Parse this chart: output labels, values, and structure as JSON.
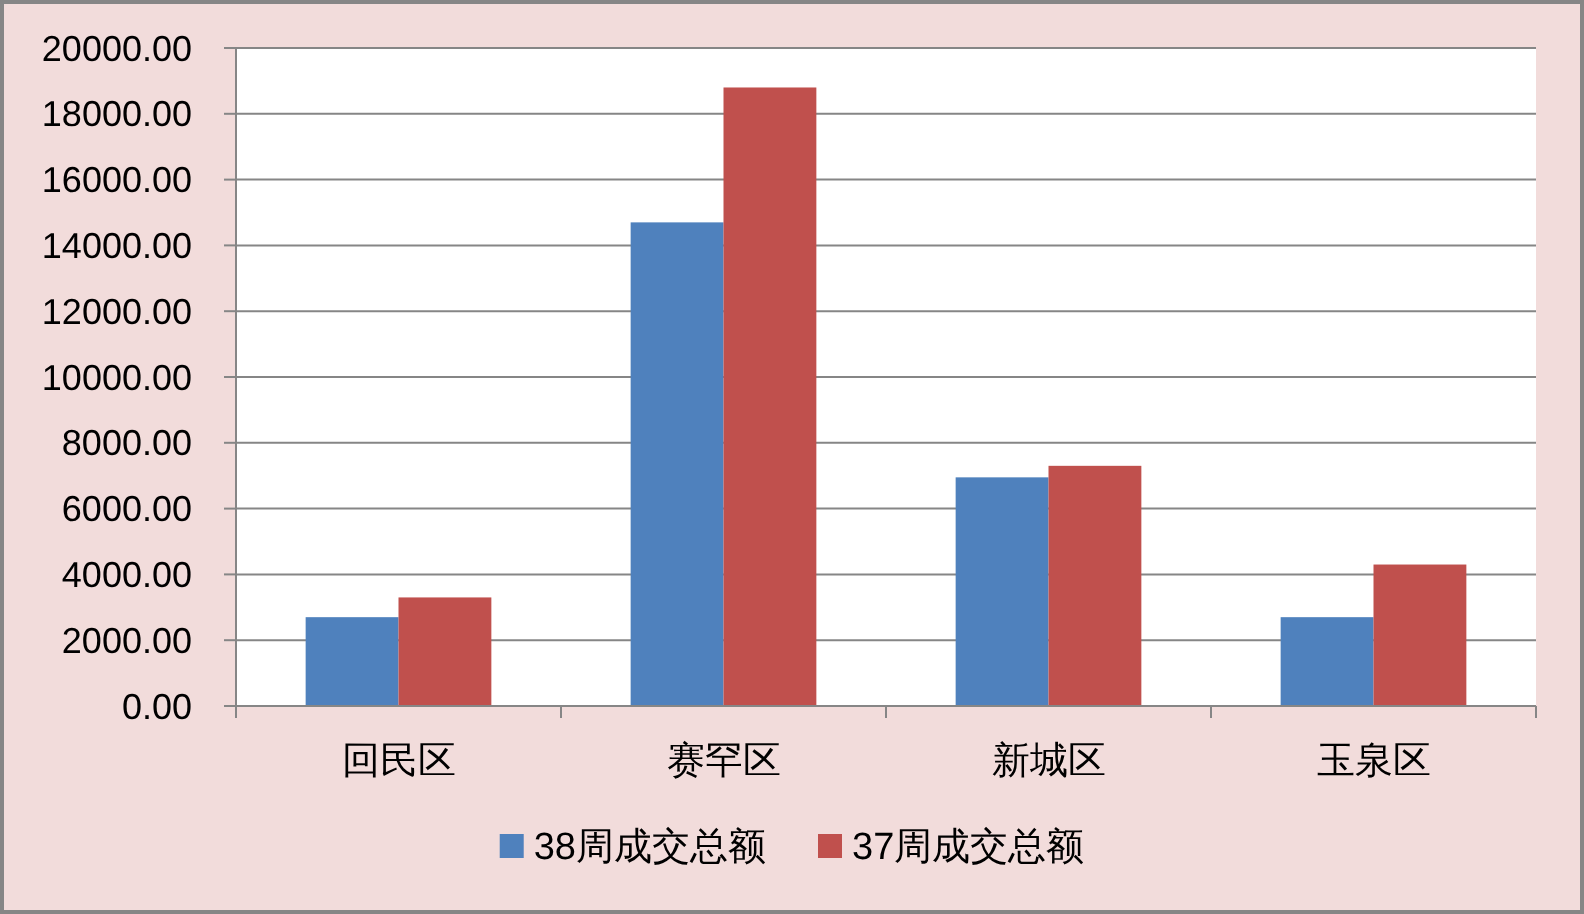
{
  "chart_data": {
    "type": "bar",
    "categories": [
      "回民区",
      "赛罕区",
      "新城区",
      "玉泉区"
    ],
    "series": [
      {
        "name": "38周成交总额",
        "color": "#4f81bd",
        "values": [
          2700,
          14700,
          6950,
          2700
        ]
      },
      {
        "name": "37周成交总额",
        "color": "#c0504d",
        "values": [
          3300,
          18800,
          7300,
          4300
        ]
      }
    ],
    "ylim": [
      0,
      20000
    ],
    "yticks": [
      {
        "value": 0,
        "label": "0.00"
      },
      {
        "value": 2000,
        "label": "2000.00"
      },
      {
        "value": 4000,
        "label": "4000.00"
      },
      {
        "value": 6000,
        "label": "6000.00"
      },
      {
        "value": 8000,
        "label": "8000.00"
      },
      {
        "value": 10000,
        "label": "10000.00"
      },
      {
        "value": 12000,
        "label": "12000.00"
      },
      {
        "value": 14000,
        "label": "14000.00"
      },
      {
        "value": 16000,
        "label": "16000.00"
      },
      {
        "value": 18000,
        "label": "18000.00"
      },
      {
        "value": 20000,
        "label": "20000.00"
      }
    ],
    "grid": "y",
    "legend": "bottom"
  }
}
